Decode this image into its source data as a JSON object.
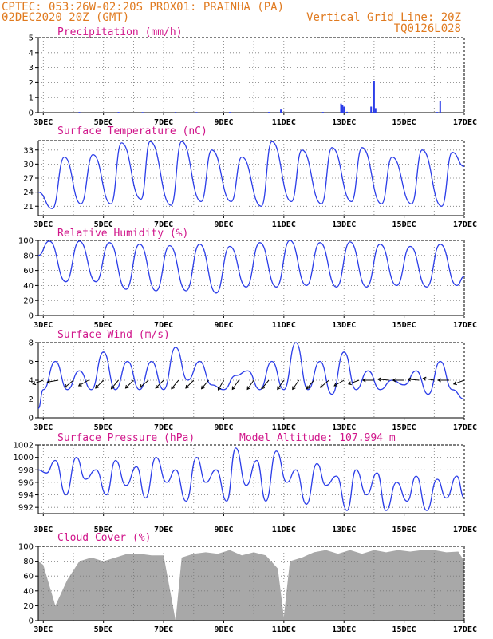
{
  "header": {
    "line1": "CPTEC:   053:26W-02:20S   PROX01: PRAINHA (PA)",
    "line2_left": "02DEC2020 20Z (GMT)",
    "line2_right": "Vertical Grid Line: 20Z",
    "line3_right": "TQ0126L028"
  },
  "colors": {
    "header_text": "#e07a1f",
    "panel_title": "#d0158a",
    "series_line": "#2b3de8",
    "cloud_fill": "#a8a8a8",
    "axis": "#000000"
  },
  "x_axis": {
    "start_day": 2.833,
    "end_day": 17.0,
    "tick_days": [
      3,
      5,
      7,
      9,
      11,
      13,
      15,
      17
    ],
    "tick_labels": [
      "3DEC",
      "5DEC",
      "7DEC",
      "9DEC",
      "11DEC",
      "13DEC",
      "15DEC",
      "17DEC"
    ],
    "gridlines_every_days": 1
  },
  "chart_data": [
    {
      "type": "bar",
      "title": "Precipitation (mm/h)",
      "ylim": [
        0,
        5
      ],
      "yticks": [
        0,
        1,
        2,
        3,
        4,
        5
      ],
      "x": [
        4.2,
        5.5,
        6.3,
        7.4,
        8.1,
        9.2,
        10.5,
        10.9,
        12.3,
        12.9,
        12.95,
        13.0,
        13.1,
        13.9,
        14.0,
        14.05,
        16.1,
        16.2
      ],
      "values": [
        0.05,
        0.05,
        0.04,
        0.05,
        0.04,
        0.05,
        0.05,
        0.2,
        0.05,
        0.6,
        0.5,
        0.4,
        0.06,
        0.4,
        2.1,
        0.3,
        0.05,
        0.75
      ]
    },
    {
      "type": "line",
      "title": "Surface Temperature (nC)",
      "ylim": [
        19,
        35
      ],
      "yticks": [
        21,
        24,
        27,
        30,
        33
      ],
      "x": [
        2.833,
        3.3,
        3.7,
        4.25,
        4.65,
        5.25,
        5.6,
        6.25,
        6.55,
        7.25,
        7.6,
        8.25,
        8.6,
        9.25,
        9.6,
        10.25,
        10.6,
        11.25,
        11.6,
        12.25,
        12.6,
        13.25,
        13.6,
        14.25,
        14.6,
        15.25,
        15.6,
        16.25,
        16.6,
        17.0
      ],
      "values": [
        24,
        20.5,
        31.5,
        21.5,
        32,
        21.5,
        34.5,
        22.5,
        34.8,
        21.2,
        34.8,
        22,
        33,
        22,
        31.5,
        21,
        34.8,
        22,
        33,
        21.5,
        33.5,
        22,
        33.5,
        21.5,
        31.5,
        21.5,
        33,
        21,
        32.5,
        29.5
      ]
    },
    {
      "type": "line",
      "title": "Relative Humidity (%)",
      "ylim": [
        0,
        100
      ],
      "yticks": [
        0,
        20,
        40,
        60,
        80,
        100
      ],
      "x": [
        2.833,
        3.2,
        3.75,
        4.2,
        4.75,
        5.2,
        5.75,
        6.2,
        6.75,
        7.2,
        7.75,
        8.2,
        8.75,
        9.2,
        9.75,
        10.2,
        10.75,
        11.2,
        11.75,
        12.2,
        12.75,
        13.2,
        13.75,
        14.2,
        14.75,
        15.2,
        15.75,
        16.2,
        16.75,
        17.0
      ],
      "values": [
        80,
        99,
        45,
        99,
        45,
        97,
        35,
        95,
        33,
        93,
        33,
        95,
        30,
        92,
        38,
        97,
        38,
        100,
        40,
        97,
        38,
        98,
        38,
        95,
        40,
        92,
        38,
        95,
        40,
        52
      ]
    },
    {
      "type": "line",
      "title": "Surface Wind (m/s)",
      "ylim": [
        0,
        8
      ],
      "yticks": [
        0,
        2,
        4,
        6,
        8
      ],
      "x": [
        2.833,
        3.0,
        3.4,
        3.8,
        4.2,
        4.6,
        5.0,
        5.4,
        5.8,
        6.2,
        6.6,
        7.0,
        7.4,
        7.8,
        8.2,
        8.6,
        9.0,
        9.4,
        9.8,
        10.2,
        10.6,
        11.0,
        11.4,
        11.8,
        12.2,
        12.6,
        13.0,
        13.4,
        13.8,
        14.2,
        14.6,
        15.0,
        15.4,
        15.8,
        16.2,
        16.6,
        17.0
      ],
      "values": [
        1,
        3,
        6,
        3,
        5,
        3,
        7,
        3,
        6,
        3,
        6,
        3,
        7.5,
        4,
        6,
        3.5,
        3,
        4.5,
        5,
        3,
        6,
        3,
        8,
        3,
        6,
        2.5,
        7,
        3,
        5,
        3,
        4,
        3.5,
        5,
        2.5,
        6,
        3,
        2
      ],
      "wind_barb_days": [
        3.0,
        3.5,
        4.0,
        4.5,
        5.0,
        5.5,
        6.0,
        6.5,
        7.0,
        7.5,
        8.0,
        8.5,
        9.0,
        9.5,
        10.0,
        10.5,
        11.0,
        11.5,
        12.0,
        12.5,
        13.0,
        13.5,
        14.0,
        14.5,
        15.0,
        15.5,
        16.0,
        16.5,
        17.0
      ],
      "wind_barb_directions_deg": [
        250,
        260,
        230,
        240,
        225,
        220,
        225,
        230,
        225,
        220,
        225,
        220,
        210,
        215,
        215,
        220,
        215,
        215,
        220,
        230,
        240,
        250,
        270,
        275,
        270,
        275,
        280,
        270,
        250
      ]
    },
    {
      "type": "line",
      "title": "Surface Pressure (hPa)",
      "subtitle": "Model Altitude: 107.994 m",
      "ylim": [
        991,
        1002
      ],
      "yticks": [
        992,
        994,
        996,
        998,
        1000,
        1002
      ],
      "x": [
        2.833,
        3.1,
        3.4,
        3.75,
        4.1,
        4.4,
        4.75,
        5.1,
        5.4,
        5.75,
        6.1,
        6.4,
        6.75,
        7.1,
        7.4,
        7.75,
        8.1,
        8.4,
        8.75,
        9.1,
        9.4,
        9.75,
        10.1,
        10.4,
        10.75,
        11.1,
        11.4,
        11.75,
        12.1,
        12.4,
        12.75,
        13.1,
        13.4,
        13.75,
        14.1,
        14.4,
        14.75,
        15.1,
        15.4,
        15.75,
        16.1,
        16.4,
        16.75,
        17.0
      ],
      "values": [
        998,
        997.5,
        999.5,
        994,
        1000,
        996.5,
        998,
        994,
        999.5,
        995.5,
        998.5,
        993.5,
        1000,
        996,
        998,
        993,
        1000,
        996,
        998,
        993,
        1001.5,
        995.5,
        999.5,
        993,
        1001,
        996,
        998,
        992.5,
        999,
        995.5,
        997,
        991.5,
        998,
        994,
        997.5,
        991.5,
        996,
        993,
        997,
        991.5,
        996.5,
        993.5,
        997,
        993.5
      ]
    },
    {
      "type": "area",
      "title": "Cloud Cover (%)",
      "ylim": [
        0,
        100
      ],
      "yticks": [
        0,
        20,
        40,
        60,
        80,
        100
      ],
      "x": [
        2.833,
        3.0,
        3.4,
        3.8,
        4.2,
        4.6,
        5.0,
        5.4,
        5.8,
        6.2,
        6.6,
        7.0,
        7.4,
        7.6,
        8.0,
        8.4,
        8.8,
        9.2,
        9.6,
        10.0,
        10.4,
        10.8,
        11.0,
        11.2,
        11.6,
        12.0,
        12.4,
        12.8,
        13.2,
        13.6,
        14.0,
        14.4,
        14.8,
        15.2,
        15.6,
        16.0,
        16.4,
        16.8,
        17.0
      ],
      "values": [
        80,
        75,
        20,
        55,
        80,
        85,
        80,
        85,
        90,
        90,
        88,
        88,
        0,
        85,
        90,
        92,
        90,
        95,
        88,
        92,
        88,
        70,
        5,
        80,
        85,
        92,
        95,
        90,
        95,
        90,
        95,
        92,
        95,
        93,
        95,
        95,
        92,
        93,
        80
      ]
    }
  ]
}
